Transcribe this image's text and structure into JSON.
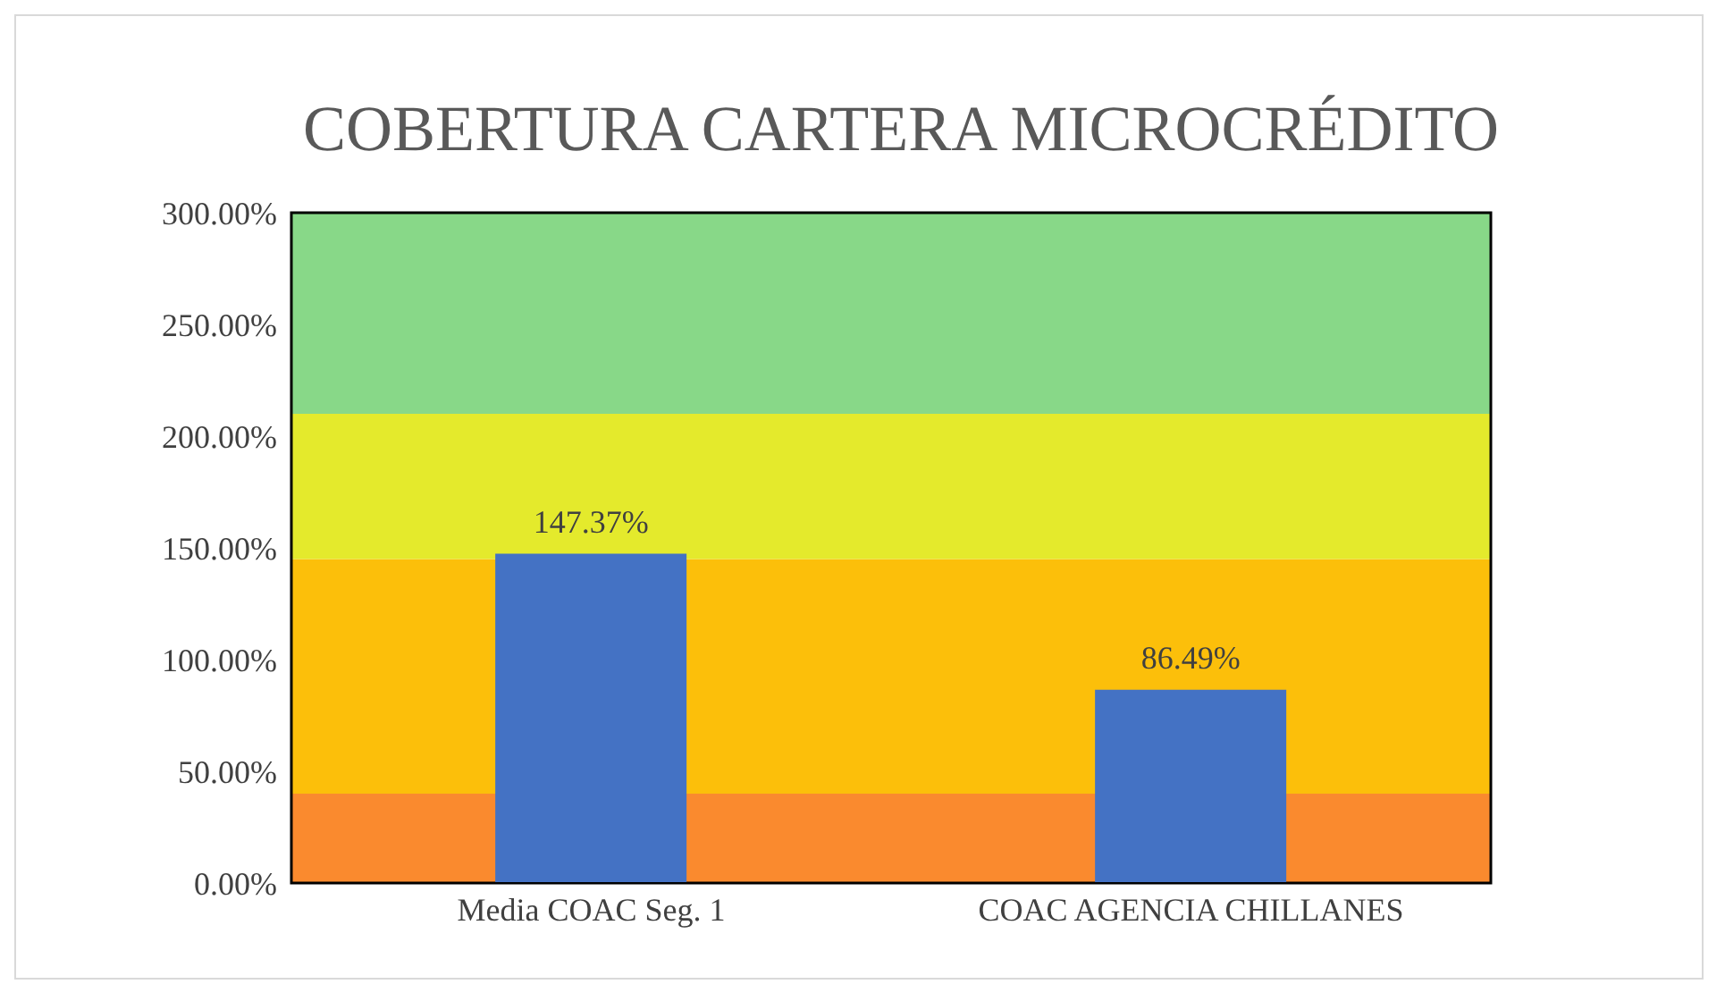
{
  "chart_data": {
    "type": "bar",
    "title": "COBERTURA CARTERA  MICROCRÉDITO",
    "categories": [
      "Media COAC Seg. 1",
      "COAC AGENCIA CHILLANES"
    ],
    "values": [
      147.37,
      86.49
    ],
    "color": "#4472c4",
    "value_labels": [
      "147.37%",
      "86.49%"
    ],
    "ylim": [
      0,
      300
    ],
    "yticks": [
      {
        "value": 0,
        "label": "0.00%"
      },
      {
        "value": 50,
        "label": "50.00%"
      },
      {
        "value": 100,
        "label": "100.00%"
      },
      {
        "value": 150,
        "label": "150.00%"
      },
      {
        "value": 200,
        "label": "200.00%"
      },
      {
        "value": 250,
        "label": "250.00%"
      },
      {
        "value": 300,
        "label": "300.00%"
      }
    ],
    "bands": [
      {
        "axis": "y",
        "from": 0,
        "to": 40,
        "color": "#fa8a2e"
      },
      {
        "axis": "y",
        "from": 40,
        "to": 145,
        "color": "#fcbf0a"
      },
      {
        "axis": "y",
        "from": 145,
        "to": 210,
        "color": "#e4ea2c"
      },
      {
        "axis": "y",
        "from": 210,
        "to": 300,
        "color": "#88d888"
      }
    ],
    "grid": false,
    "legend": false
  }
}
